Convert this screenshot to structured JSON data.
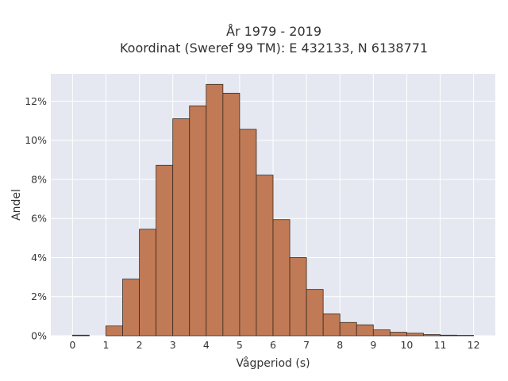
{
  "chart_data": {
    "type": "bar",
    "title": "År 1979 - 2019",
    "subtitle": "Koordinat (Sweref 99 TM): E 432133, N 6138771",
    "xlabel": "Vågperiod (s)",
    "ylabel": "Andel",
    "xlim": [
      -0.65,
      12.65
    ],
    "ylim": [
      0,
      13.4
    ],
    "x_ticks": [
      0,
      1,
      2,
      3,
      4,
      5,
      6,
      7,
      8,
      9,
      10,
      11,
      12
    ],
    "y_ticks": [
      0,
      2,
      4,
      6,
      8,
      10,
      12
    ],
    "y_tick_suffix": "%",
    "bin_width": 0.5,
    "bin_starts": [
      0,
      0.5,
      1,
      1.5,
      2,
      2.5,
      3,
      3.5,
      4,
      4.5,
      5,
      5.5,
      6,
      6.5,
      7,
      7.5,
      8,
      8.5,
      9,
      9.5,
      10,
      10.5,
      11,
      11.5
    ],
    "values": [
      0.03,
      0.0,
      0.5,
      2.9,
      5.45,
      8.72,
      11.1,
      11.76,
      12.86,
      12.41,
      10.56,
      8.22,
      5.94,
      4.0,
      2.37,
      1.12,
      0.68,
      0.56,
      0.3,
      0.18,
      0.13,
      0.06,
      0.03,
      0.02
    ],
    "bar_color": "#c07a55",
    "bar_edge_color": "#3a2a20",
    "background_color": "#e5e8f1",
    "grid": true
  }
}
